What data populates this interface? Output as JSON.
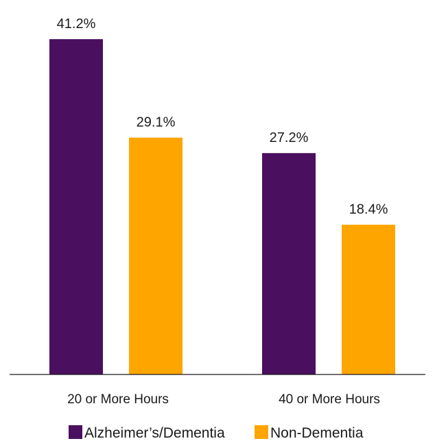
{
  "chart_data": {
    "type": "bar",
    "categories": [
      "20 or More Hours",
      "40 or More Hours"
    ],
    "series": [
      {
        "name": "Alzheimer’s/Dementia",
        "values": [
          41.2,
          27.2
        ],
        "labels": [
          "41.2%",
          "27.2%"
        ],
        "color": "#4B0F5F"
      },
      {
        "name": "Non-Dementia",
        "values": [
          29.1,
          18.4
        ],
        "labels": [
          "29.1%",
          "18.4%"
        ],
        "color": "#FFA500"
      }
    ],
    "ylim": [
      0,
      45
    ],
    "grid": false,
    "legend_position": "bottom"
  }
}
